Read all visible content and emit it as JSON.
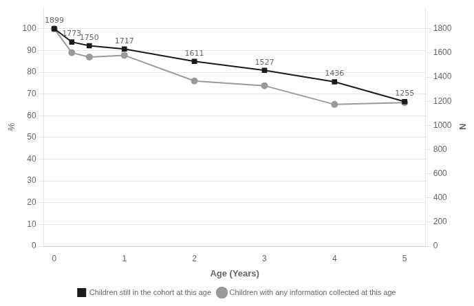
{
  "chart_data": {
    "type": "line",
    "x": [
      0,
      0.25,
      0.5,
      1.0,
      2.0,
      3.0,
      4.0,
      5.0
    ],
    "series": [
      {
        "name": "Children still in the cohort at this age",
        "color": "#1a1a1a",
        "marker": "square",
        "values": [
          100,
          93.9,
          92.2,
          90.7,
          85.0,
          80.9,
          75.6,
          66.5
        ]
      },
      {
        "name": "Children with any information collected at this age",
        "color": "#999999",
        "marker": "circle",
        "values": [
          100.0,
          89.0,
          87.0,
          87.8,
          76.0,
          73.8,
          65.2,
          66.0
        ]
      }
    ],
    "annotations": [
      {
        "x": 0,
        "text": "1899"
      },
      {
        "x": 0.25,
        "text": "1773"
      },
      {
        "x": 0.5,
        "text": "1750"
      },
      {
        "x": 1.0,
        "text": "1717"
      },
      {
        "x": 2.0,
        "text": "1611"
      },
      {
        "x": 3.0,
        "text": "1527"
      },
      {
        "x": 4.0,
        "text": "1436"
      },
      {
        "x": 5.0,
        "text": "1255"
      }
    ],
    "xlabel": "Age (Years)",
    "ylabel": "%",
    "y2label": "N",
    "xlim": [
      -0.15,
      5.3
    ],
    "xticks": [
      0,
      1,
      2,
      3,
      4,
      5
    ],
    "ylim": [
      0,
      110
    ],
    "yticks": [
      0,
      10,
      20,
      30,
      40,
      50,
      60,
      70,
      80,
      90,
      100
    ],
    "y2lim": [
      0,
      1980
    ],
    "y2ticks": [
      0,
      200,
      400,
      600,
      800,
      1000,
      1200,
      1400,
      1600,
      1800
    ],
    "grid": true,
    "legend": "bottom"
  }
}
